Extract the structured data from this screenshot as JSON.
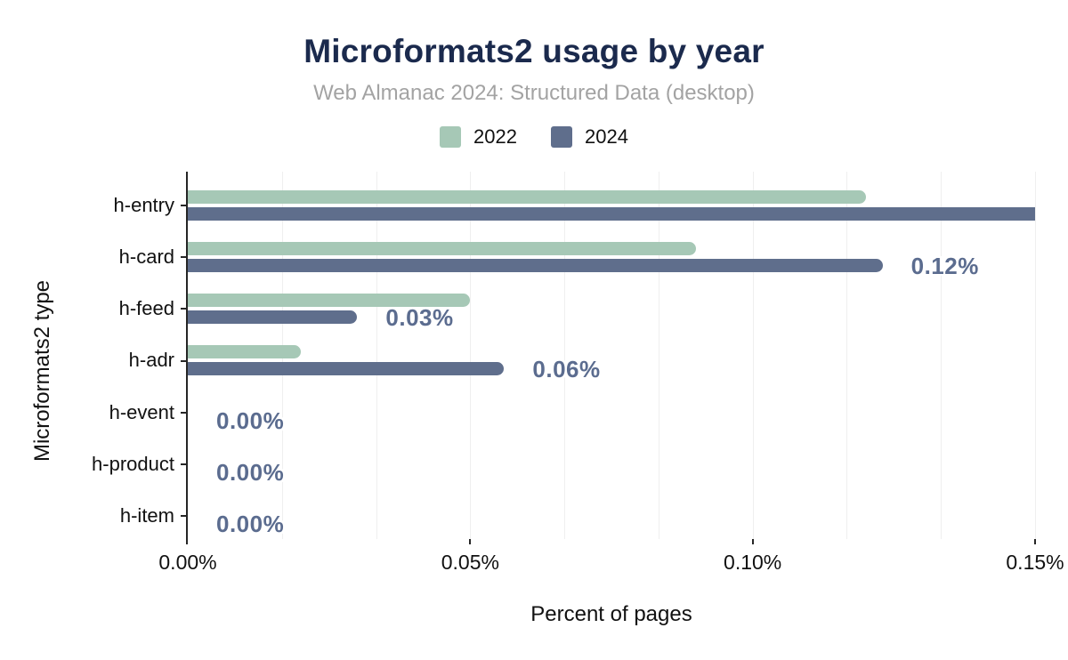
{
  "chart_data": {
    "type": "bar",
    "orientation": "horizontal",
    "title": "Microformats2 usage by year",
    "subtitle": "Web Almanac 2024: Structured Data (desktop)",
    "xlabel": "Percent of pages",
    "ylabel": "Microformats2 type",
    "categories": [
      "h-entry",
      "h-card",
      "h-feed",
      "h-adr",
      "h-event",
      "h-product",
      "h-item"
    ],
    "series": [
      {
        "name": "2022",
        "color": "#a6c8b6",
        "values": [
          0.12,
          0.09,
          0.05,
          0.02,
          0,
          0,
          0
        ]
      },
      {
        "name": "2024",
        "color": "#5f6e8c",
        "values": [
          0.15,
          0.123,
          0.03,
          0.056,
          0,
          0,
          0
        ]
      }
    ],
    "bar_labels": {
      "series": "2024",
      "values": [
        "",
        "0.12%",
        "0.03%",
        "0.06%",
        "0.00%",
        "0.00%",
        "0.00%"
      ]
    },
    "xlim": [
      0,
      0.15
    ],
    "xticks": [
      "0.00%",
      "0.05%",
      "0.10%",
      "0.15%"
    ],
    "minor_gridline_divisions": 9,
    "legend_position": "top",
    "grid": true
  },
  "style": {
    "title_color": "#1b2a4d",
    "subtitle_color": "#a3a3a3",
    "axis_text_color": "#111111",
    "data_label_color": "#5b6c8f",
    "gridline_color": "#efefef",
    "axis_line_color": "#262626",
    "background": "#ffffff"
  }
}
